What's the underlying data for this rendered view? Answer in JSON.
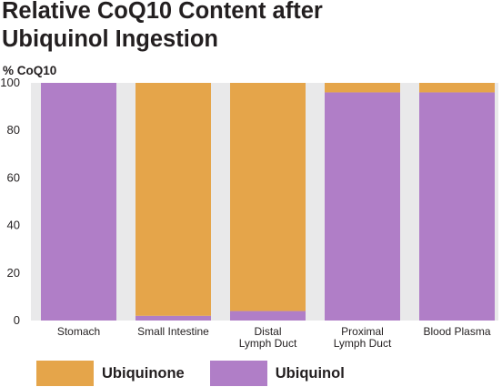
{
  "chart_data": {
    "type": "bar",
    "stacked": true,
    "title_lines": [
      "Relative CoQ10 Content after",
      "Ubiquinol Ingestion"
    ],
    "ylabel": "% CoQ10",
    "xlabel": "",
    "ylim": [
      0,
      100
    ],
    "yticks": [
      "0",
      "20",
      "40",
      "60",
      "80",
      "100"
    ],
    "grid": false,
    "legend_placement": "bottom",
    "categories": [
      [
        "Stomach"
      ],
      [
        "Small Intestine"
      ],
      [
        "Distal",
        "Lymph Duct"
      ],
      [
        "Proximal",
        "Lymph Duct"
      ],
      [
        "Blood Plasma"
      ]
    ],
    "series": [
      {
        "name": "Ubiquinol",
        "color": "#b07ec7",
        "values": [
          100,
          2,
          4,
          96,
          96
        ]
      },
      {
        "name": "Ubiquinone",
        "color": "#e5a54a",
        "values": [
          0,
          98,
          96,
          4,
          4
        ]
      }
    ],
    "legend": [
      {
        "name": "Ubiquinone",
        "color": "#e5a54a"
      },
      {
        "name": "Ubiquinol",
        "color": "#b07ec7"
      }
    ],
    "colors": {
      "panel": "#e9e9ea",
      "text": "#231f20"
    }
  }
}
